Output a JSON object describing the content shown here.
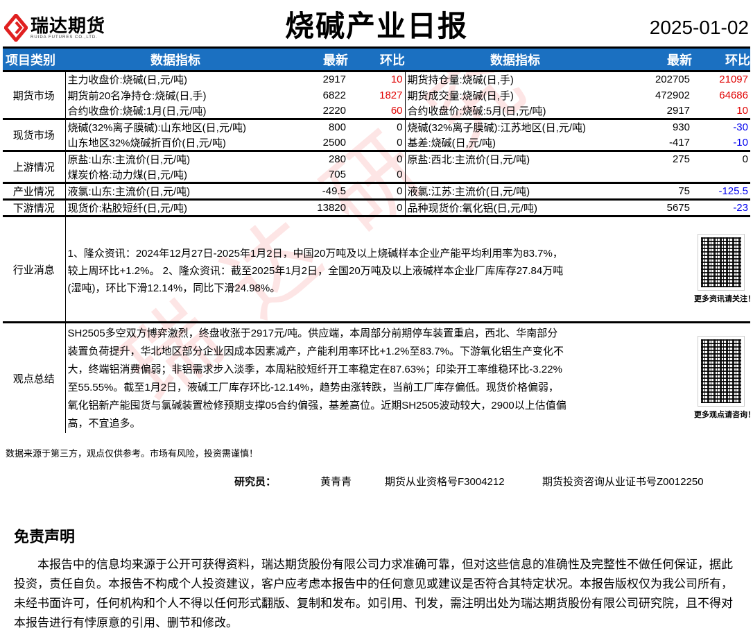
{
  "header": {
    "logo_cn": "瑞达期货",
    "logo_en": "RUIDA FUTURES CO.,LTD.",
    "title": "烧碱产业日报",
    "date": "2025-01-02"
  },
  "table": {
    "headers": [
      "项目类别",
      "数据指标",
      "最新",
      "环比",
      "数据指标",
      "最新",
      "环比"
    ],
    "sections": [
      {
        "category": "期货市场",
        "rows": [
          [
            "主力收盘价:烧碱(日,元/吨)",
            "2917",
            "10",
            "期货持仓量:烧碱(日,手)",
            "202705",
            "21097"
          ],
          [
            "期货前20名净持仓:烧碱(日,手)",
            "6822",
            "1827",
            "期货成交量:烧碱(日,手)",
            "472902",
            "64686"
          ],
          [
            "合约收盘价:烧碱:1月(日,元/吨)",
            "2220",
            "60",
            "合约收盘价:烧碱:5月(日,元/吨)",
            "2917",
            "10"
          ]
        ]
      },
      {
        "category": "现货市场",
        "rows": [
          [
            "烧碱(32%离子膜碱):山东地区(日,元/吨)",
            "800",
            "0",
            "烧碱(32%离子膜碱):江苏地区(日,元/吨)",
            "930",
            "-30"
          ],
          [
            "山东地区32%烧碱折百价(日,元/吨)",
            "2500",
            "0",
            "基差:烧碱(日,元/吨)",
            "-417",
            "-10"
          ]
        ]
      },
      {
        "category": "上游情况",
        "rows": [
          [
            "原盐:山东:主流价(日,元/吨)",
            "280",
            "0",
            "原盐:西北:主流价(日,元/吨)",
            "275",
            "0"
          ],
          [
            "煤炭价格:动力煤(日,元/吨)",
            "705",
            "0",
            "",
            "",
            ""
          ]
        ]
      },
      {
        "category": "产业情况",
        "rows": [
          [
            "液氯:山东:主流价(日,元/吨)",
            "-49.5",
            "0",
            "液氯:江苏:主流价(日,元/吨)",
            "75",
            "-125.5"
          ]
        ]
      },
      {
        "category": "下游情况",
        "rows": [
          [
            "现货价:粘胶短纤(日,元/吨)",
            "13820",
            "0",
            "品种现货价:氧化铝(日,元/吨)",
            "5675",
            "-23"
          ]
        ]
      }
    ]
  },
  "news": {
    "category": "行业消息",
    "text": "1、隆众资讯：2024年12月27日-2025年1月2日，中国20万吨及以上烧碱样本企业产能平均利用率为83.7%，较上周环比+1.2%。 2、隆众资讯：截至2025年1月2日，全国20万吨及以上液碱样本企业厂库库存27.84万吨(湿吨)，环比下滑12.14%，同比下滑24.98%。",
    "qr_caption": "更多资讯请关注！"
  },
  "summary": {
    "category": "观点总结",
    "text": "SH2505多空双方博弈激烈，终盘收涨于2917元/吨。供应端，本周部分前期停车装置重启，西北、华南部分装置负荷提升，华北地区部分企业因成本因素减产，产能利用率环比+1.2%至83.7%。下游氧化铝生产变化不大，终端铝消费偏弱；非铝需求步入淡季，本周粘胶短纤开工率稳定在87.63%；印染开工率维稳环比-3.22%至55.55%。截至1月2日，液碱工厂库存环比-12.14%，趋势由涨转跌，当前工厂库存偏低。现货价格偏弱，氧化铝新产能囤货与氯碱装置检修预期支撑05合约偏强，基差高位。近期SH2505波动较大，2900以上估值偏高，不宜追多。",
    "qr_caption": "更多观点请咨询！"
  },
  "footnote": "数据来源于第三方，观点仅供参考。市场有风险，投资需谨慎！",
  "researcher": {
    "label": "研究员：",
    "name": "黄青青",
    "license1": "期货从业资格号F3004212",
    "license2": "期货投资咨询从业证书号Z0012250"
  },
  "disclaimer": {
    "title": "免责声明",
    "text": "本报告中的信息均来源于公开可获得资料，瑞达期货股份有限公司力求准确可靠，但对这些信息的准确性及完整性不做任何保证，据此投资，责任自负。本报告不构成个人投资建议，客户应考虑本报告中的任何意见或建议是否符合其特定状况。本报告版权仅为我公司所有，未经书面许可，任何机构和个人不得以任何形式翻版、复制和发布。如引用、刊发，需注明出处为瑞达期货股份有限公司研究院，且不得对本报告进行有悖原意的引用、删节和修改。"
  },
  "watermark": "瑞达研究",
  "colors": {
    "header_bg": "#1b70c1",
    "positive": "#e00000",
    "negative": "#0000ee"
  }
}
